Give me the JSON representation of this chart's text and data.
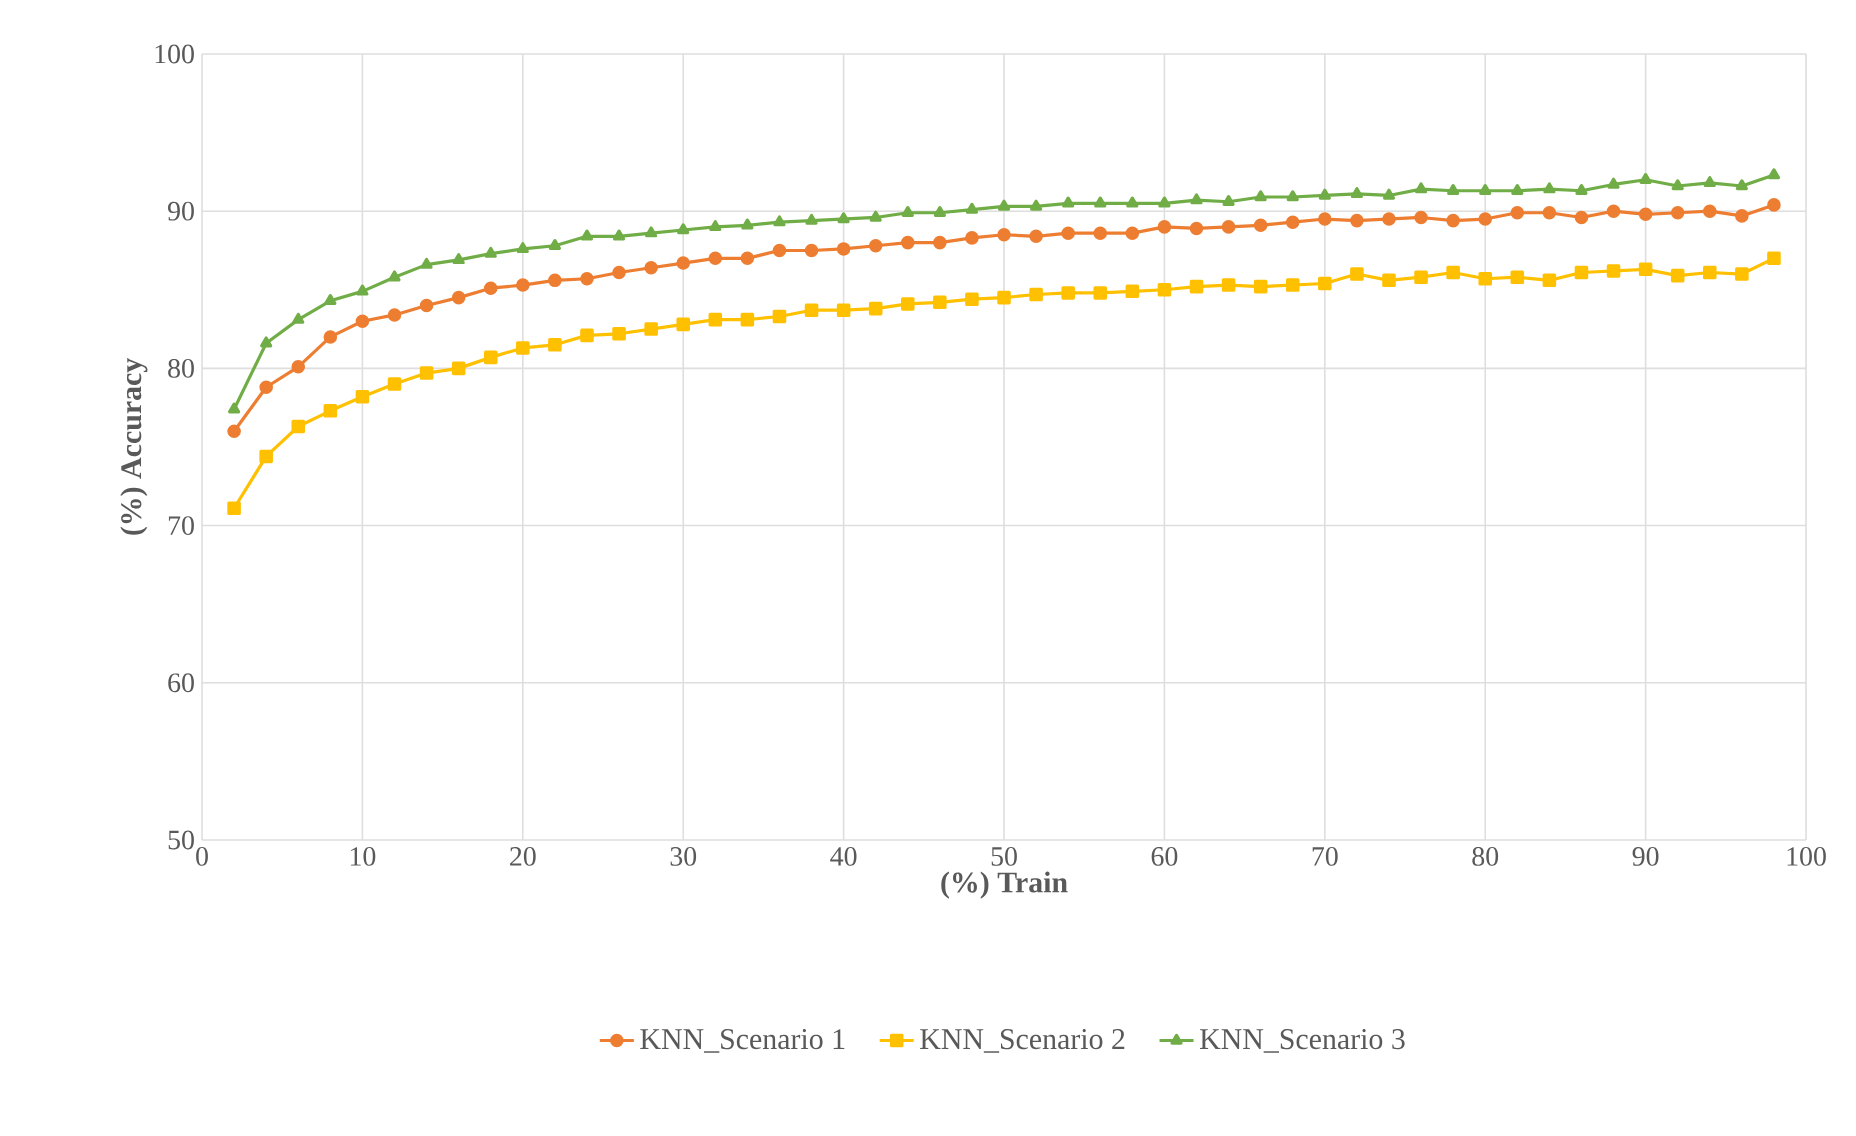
{
  "chart_data": {
    "type": "line",
    "xlabel": "(%) Train",
    "ylabel": "(%) Accuracy",
    "x": [
      2,
      4,
      6,
      8,
      10,
      12,
      14,
      16,
      18,
      20,
      22,
      24,
      26,
      28,
      30,
      32,
      34,
      36,
      38,
      40,
      42,
      44,
      46,
      48,
      50,
      52,
      54,
      56,
      58,
      60,
      62,
      64,
      66,
      68,
      70,
      72,
      74,
      76,
      78,
      80,
      82,
      84,
      86,
      88,
      90,
      92,
      94,
      96,
      98
    ],
    "series": [
      {
        "name": "KNN_Scenario 1",
        "color": "#ed7d31",
        "marker": "circle",
        "values": [
          76,
          78.8,
          80.1,
          82,
          83,
          83.4,
          84,
          84.5,
          85.1,
          85.3,
          85.6,
          85.7,
          86.1,
          86.4,
          86.7,
          87,
          87,
          87.5,
          87.5,
          87.6,
          87.8,
          88,
          88,
          88.3,
          88.5,
          88.4,
          88.6,
          88.6,
          88.6,
          89,
          88.9,
          89,
          89.1,
          89.3,
          89.5,
          89.4,
          89.5,
          89.6,
          89.4,
          89.5,
          89.9,
          89.9,
          89.6,
          90,
          89.8,
          89.9,
          90,
          89.7,
          90.4
        ]
      },
      {
        "name": "KNN_Scenario 2",
        "color": "#ffc000",
        "marker": "square",
        "values": [
          71.1,
          74.4,
          76.3,
          77.3,
          78.2,
          79,
          79.7,
          80,
          80.7,
          81.3,
          81.5,
          82.1,
          82.2,
          82.5,
          82.8,
          83.1,
          83.1,
          83.3,
          83.7,
          83.7,
          83.8,
          84.1,
          84.2,
          84.4,
          84.5,
          84.7,
          84.8,
          84.8,
          84.9,
          85,
          85.2,
          85.3,
          85.2,
          85.3,
          85.4,
          86,
          85.6,
          85.8,
          86.1,
          85.7,
          85.8,
          85.6,
          86.1,
          86.2,
          86.3,
          85.9,
          86.1,
          86,
          87
        ]
      },
      {
        "name": "KNN_Scenario 3",
        "color": "#70ad47",
        "marker": "triangle",
        "values": [
          77.4,
          81.6,
          83.1,
          84.3,
          84.9,
          85.8,
          86.6,
          86.9,
          87.3,
          87.6,
          87.8,
          88.4,
          88.4,
          88.6,
          88.8,
          89,
          89.1,
          89.3,
          89.4,
          89.5,
          89.6,
          89.9,
          89.9,
          90.1,
          90.3,
          90.3,
          90.5,
          90.5,
          90.5,
          90.5,
          90.7,
          90.6,
          90.9,
          90.9,
          91,
          91.1,
          91,
          91.4,
          91.3,
          91.3,
          91.3,
          91.4,
          91.3,
          91.7,
          92,
          91.6,
          91.8,
          91.6,
          92.3
        ]
      }
    ],
    "xlim": [
      0,
      100
    ],
    "xticks": [
      0,
      10,
      20,
      30,
      40,
      50,
      60,
      70,
      80,
      90,
      100
    ],
    "ylim": [
      50,
      100
    ],
    "yticks": [
      50,
      60,
      70,
      80,
      90,
      100
    ],
    "grid": true,
    "legend": "bottom"
  }
}
